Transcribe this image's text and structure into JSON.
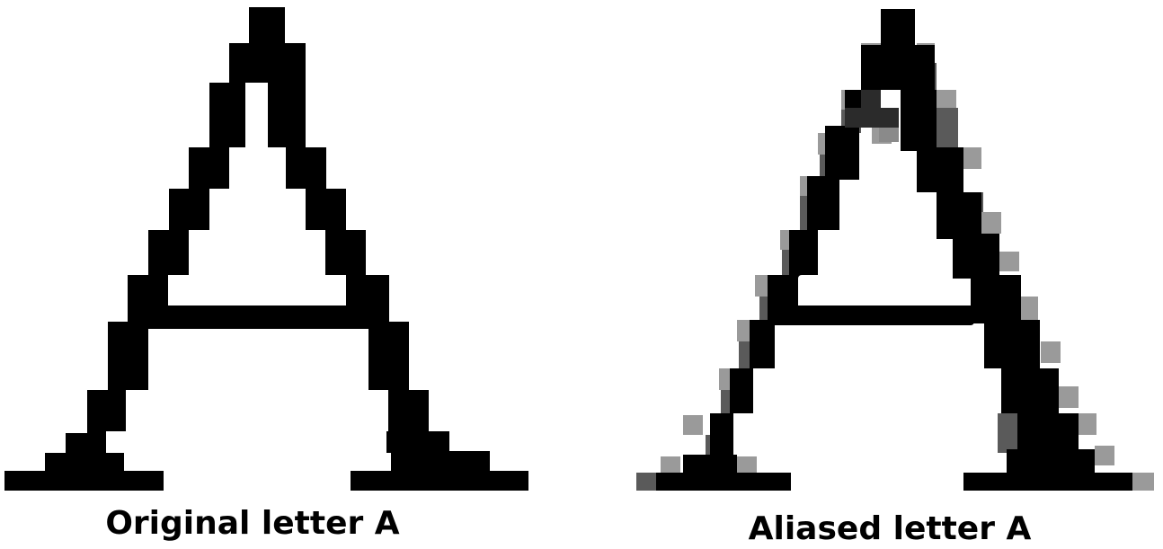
{
  "figure": {
    "left_caption": "Original letter A",
    "right_caption": "Aliased letter A"
  },
  "colors": {
    "background": "#ffffff",
    "ink": "#000000",
    "edge_dark": "#2b2b2b",
    "edge_mid": "#5a5a5a",
    "edge_light": "#9a9a9a"
  }
}
